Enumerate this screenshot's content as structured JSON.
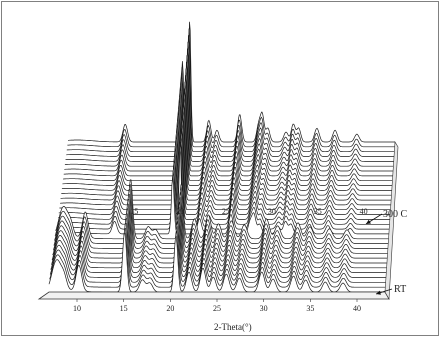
{
  "chart_data": {
    "type": "line",
    "style": "stacked-waterfall-xrd",
    "xlabel": "2-Theta(°)",
    "xticks": [
      15,
      20,
      25,
      30,
      35,
      40
    ],
    "xticks_front": [
      10,
      15,
      20,
      25,
      30,
      35,
      40
    ],
    "xlim": [
      7,
      43
    ],
    "num_traces": 32,
    "high_temp_start_index": 12,
    "annotations": {
      "high": "300 C",
      "low": "RT"
    },
    "phase_low_peaks": [
      {
        "x": 7.5,
        "h": 16,
        "w": 0.35
      },
      {
        "x": 8.0,
        "h": 22,
        "w": 0.35
      },
      {
        "x": 8.6,
        "h": 14,
        "w": 0.3
      },
      {
        "x": 10.2,
        "h": 26,
        "w": 0.3
      },
      {
        "x": 15.1,
        "h": 60,
        "w": 0.22
      },
      {
        "x": 17.0,
        "h": 12,
        "w": 0.3
      },
      {
        "x": 17.8,
        "h": 9,
        "w": 0.3
      },
      {
        "x": 20.6,
        "h": 56,
        "w": 0.2
      },
      {
        "x": 22.0,
        "h": 20,
        "w": 0.28
      },
      {
        "x": 23.5,
        "h": 24,
        "w": 0.28
      },
      {
        "x": 24.6,
        "h": 15,
        "w": 0.28
      },
      {
        "x": 26.0,
        "h": 18,
        "w": 0.3
      },
      {
        "x": 27.4,
        "h": 14,
        "w": 0.3
      },
      {
        "x": 29.8,
        "h": 20,
        "w": 0.3
      },
      {
        "x": 31.0,
        "h": 13,
        "w": 0.3
      },
      {
        "x": 33.2,
        "h": 16,
        "w": 0.3
      },
      {
        "x": 34.5,
        "h": 12,
        "w": 0.3
      },
      {
        "x": 36.6,
        "h": 10,
        "w": 0.3
      },
      {
        "x": 38.5,
        "h": 9,
        "w": 0.3
      }
    ],
    "phase_high_peaks": [
      {
        "x": 13.3,
        "h": 18,
        "w": 0.25
      },
      {
        "x": 19.6,
        "h": 82,
        "w": 0.15
      },
      {
        "x": 20.4,
        "h": 125,
        "w": 0.13
      },
      {
        "x": 22.5,
        "h": 22,
        "w": 0.22
      },
      {
        "x": 23.4,
        "h": 12,
        "w": 0.22
      },
      {
        "x": 25.9,
        "h": 28,
        "w": 0.22
      },
      {
        "x": 28.0,
        "h": 18,
        "w": 0.22
      },
      {
        "x": 28.4,
        "h": 26,
        "w": 0.2
      },
      {
        "x": 29.0,
        "h": 14,
        "w": 0.22
      },
      {
        "x": 31.0,
        "h": 10,
        "w": 0.25
      },
      {
        "x": 31.8,
        "h": 18,
        "w": 0.22
      },
      {
        "x": 32.4,
        "h": 14,
        "w": 0.22
      },
      {
        "x": 34.4,
        "h": 14,
        "w": 0.25
      },
      {
        "x": 36.4,
        "h": 12,
        "w": 0.25
      },
      {
        "x": 38.8,
        "h": 8,
        "w": 0.25
      }
    ]
  }
}
